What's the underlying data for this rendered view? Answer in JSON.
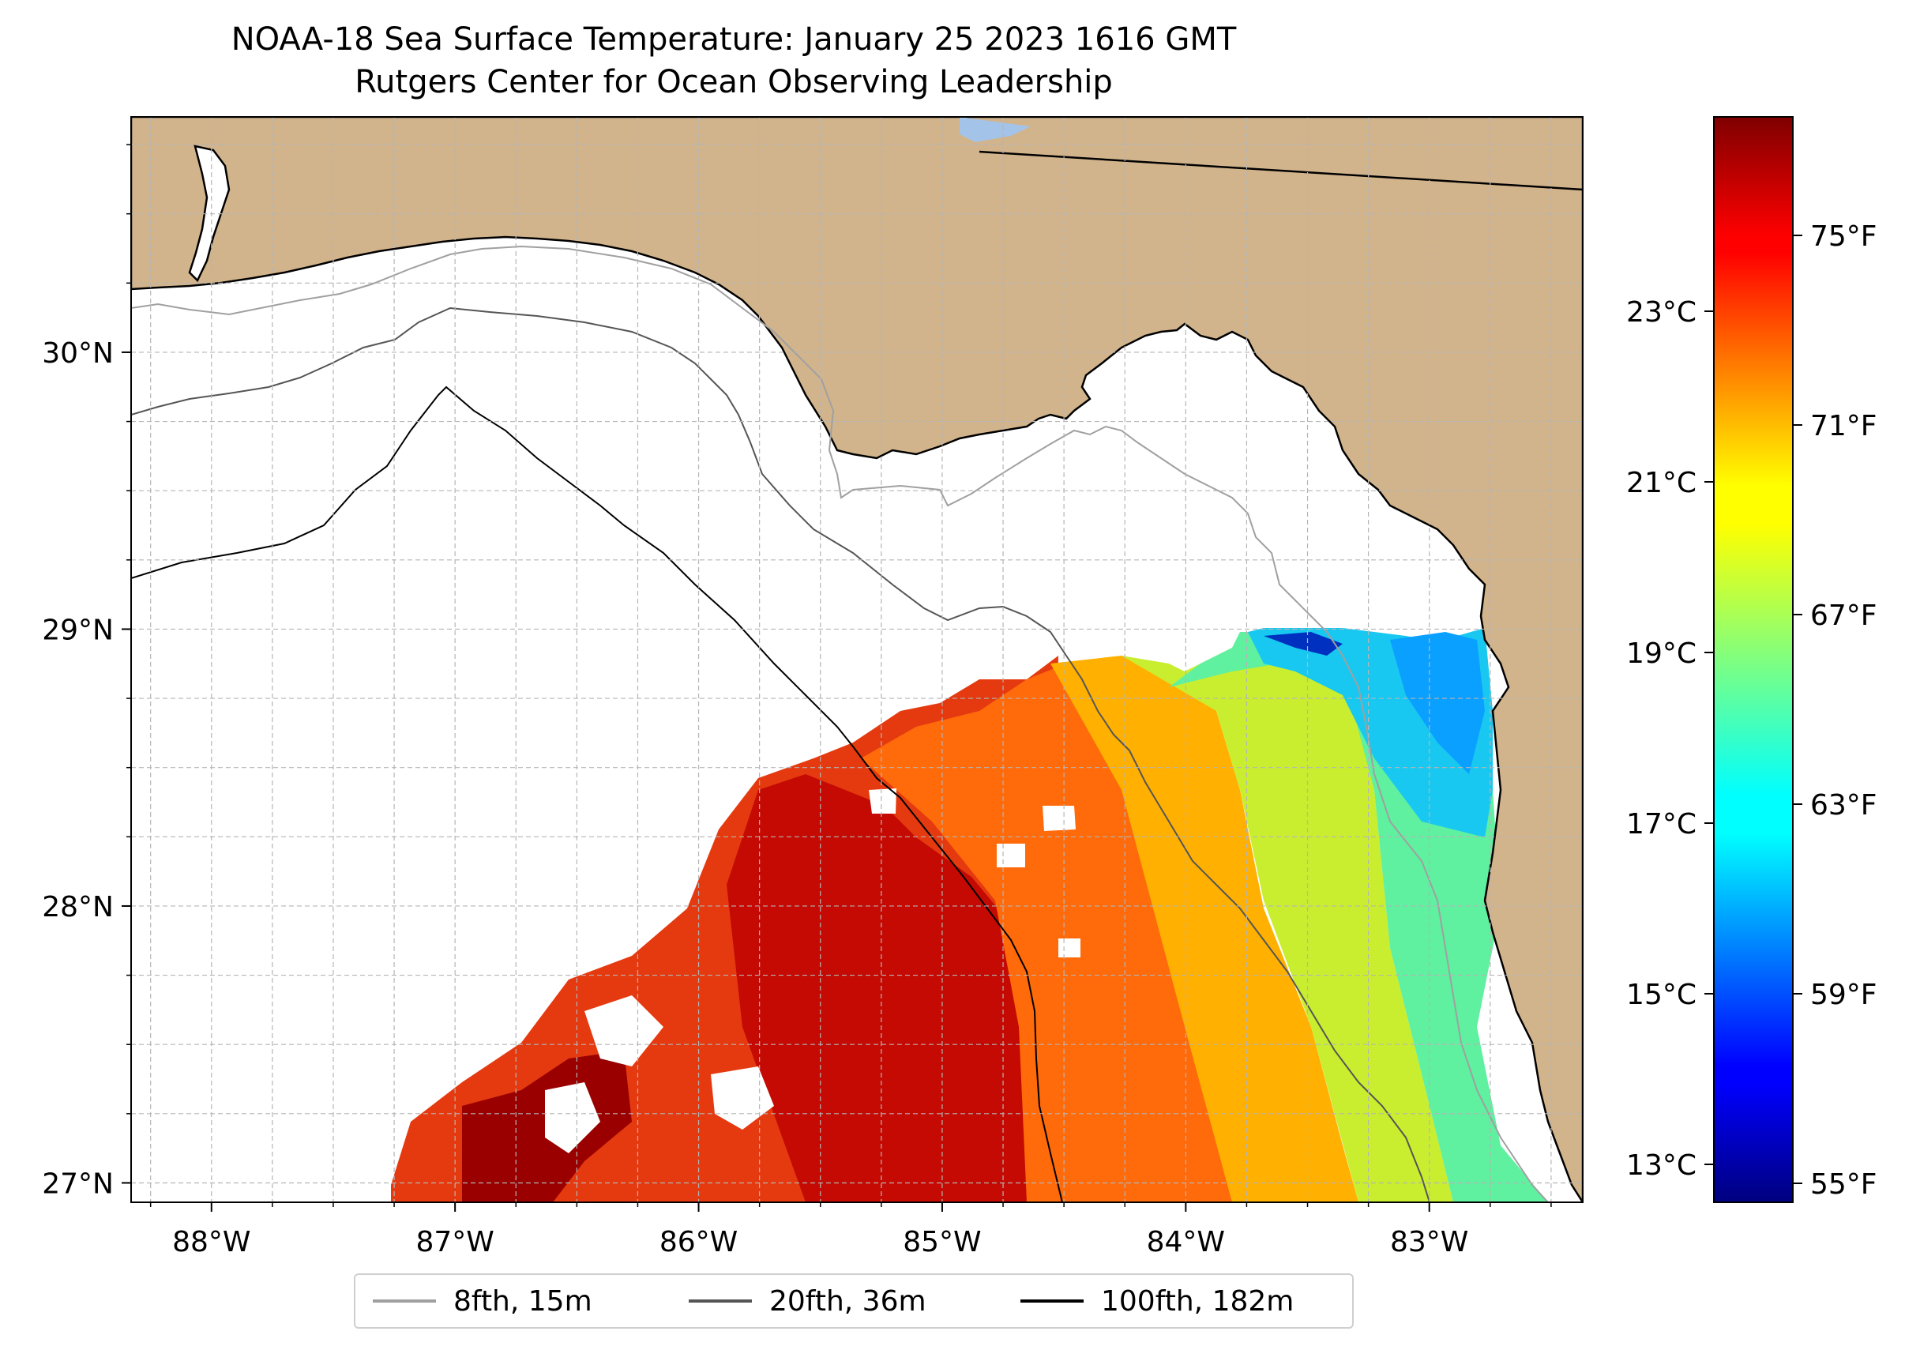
{
  "title": {
    "line1": "NOAA-18 Sea Surface Temperature: January 25 2023 1616 GMT",
    "line2": "Rutgers Center for Ocean Observing Leadership"
  },
  "map": {
    "extent_lon": [
      -88.33,
      -82.37
    ],
    "extent_lat": [
      26.93,
      30.85
    ],
    "lon_ticks": [
      {
        "value": -88,
        "label": "88°W"
      },
      {
        "value": -87,
        "label": "87°W"
      },
      {
        "value": -86,
        "label": "86°W"
      },
      {
        "value": -85,
        "label": "85°W"
      },
      {
        "value": -84,
        "label": "84°W"
      },
      {
        "value": -83,
        "label": "83°W"
      }
    ],
    "lat_ticks": [
      {
        "value": 27,
        "label": "27°N"
      },
      {
        "value": 28,
        "label": "28°N"
      },
      {
        "value": 29,
        "label": "29°N"
      },
      {
        "value": 30,
        "label": "30°N"
      }
    ],
    "colors": {
      "land": "#d2b48c",
      "ocean": "#ffffff",
      "lake": "#a4c3e8",
      "grid": "#b5b5b5"
    }
  },
  "colorbar": {
    "colormap": "jet",
    "f_ticks": [
      {
        "value": 55,
        "label": "55°F"
      },
      {
        "value": 59,
        "label": "59°F"
      },
      {
        "value": 63,
        "label": "63°F"
      },
      {
        "value": 67,
        "label": "67°F"
      },
      {
        "value": 71,
        "label": "71°F"
      },
      {
        "value": 75,
        "label": "75°F"
      }
    ],
    "c_ticks": [
      {
        "value": 13,
        "label": "13°C"
      },
      {
        "value": 15,
        "label": "15°C"
      },
      {
        "value": 17,
        "label": "17°C"
      },
      {
        "value": 19,
        "label": "19°C"
      },
      {
        "value": 21,
        "label": "21°C"
      },
      {
        "value": 23,
        "label": "23°C"
      }
    ],
    "range_f": [
      54.6,
      77.5
    ]
  },
  "legend": {
    "items": [
      {
        "label": "8fth, 15m",
        "color": "#a0a0a0"
      },
      {
        "label": "20fth, 36m",
        "color": "#555555"
      },
      {
        "label": "100fth, 182m",
        "color": "#000000"
      }
    ]
  }
}
